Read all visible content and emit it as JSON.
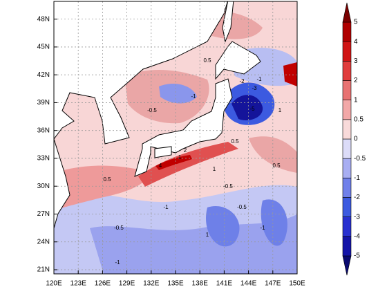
{
  "map": {
    "lon_ticks": [
      "120E",
      "123E",
      "126E",
      "129E",
      "132E",
      "135E",
      "138E",
      "141E",
      "144E",
      "147E",
      "150E"
    ],
    "lat_ticks": [
      "21N",
      "24N",
      "27N",
      "30N",
      "33N",
      "36N",
      "39N",
      "42N",
      "45N",
      "48N"
    ],
    "contour_labels": [
      "-5",
      "-1",
      "-3",
      "-2",
      "0.5",
      "-0.5",
      "1",
      "4",
      "2",
      "-0.5",
      "0.5",
      "-1",
      "1",
      "-0.5",
      "-1",
      "0.5",
      "1",
      "-1",
      "-0.5",
      "0.5",
      "-1",
      "1"
    ]
  },
  "colorbar": {
    "labels": [
      "-5",
      "-4",
      "-3",
      "-2",
      "-1",
      "-0.5",
      "0",
      "0.5",
      "1",
      "2",
      "3",
      "4",
      "5"
    ],
    "colors": [
      "#0a0a70",
      "#1414a8",
      "#2830d0",
      "#3c5ae0",
      "#7080ea",
      "#a8aef2",
      "#dcdcf8",
      "#f8dada",
      "#f2a8a8",
      "#e87272",
      "#e03c3c",
      "#d01414",
      "#b00000",
      "#7a0000"
    ]
  }
}
